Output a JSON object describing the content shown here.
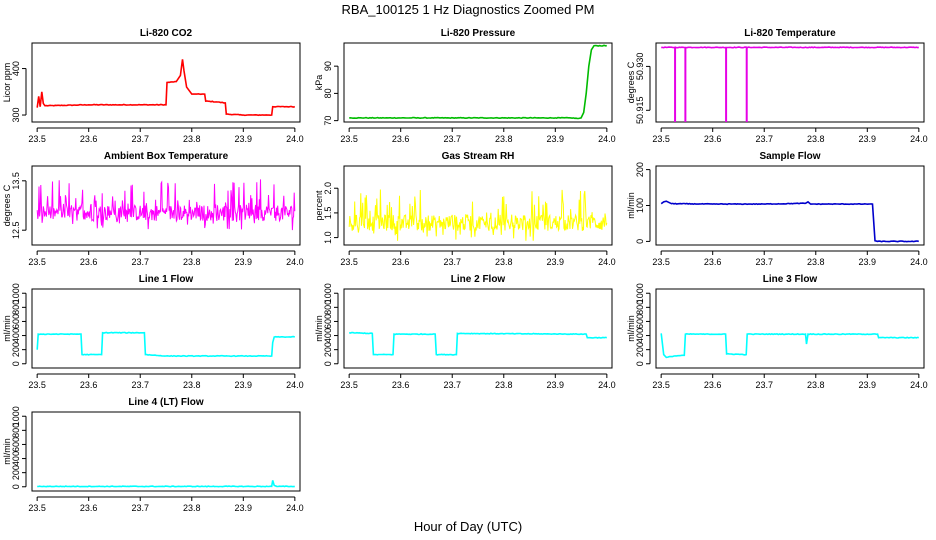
{
  "figure": {
    "title": "RBA_100125  1 Hz Diagnostics Zoomed PM",
    "xlabel": "Hour of Day (UTC)"
  },
  "chart_data": [
    {
      "type": "line",
      "title": "Li-820 CO2",
      "ylabel": "Licor ppm",
      "color": "#ff0000",
      "xlim": [
        23.49,
        24.01
      ],
      "ylim": [
        285,
        455
      ],
      "yticks": [
        300,
        400
      ],
      "ytick_labels": [
        "300",
        "400"
      ],
      "xticks": [
        23.5,
        23.6,
        23.7,
        23.8,
        23.9,
        24.0
      ],
      "xtick_labels": [
        "23.5",
        "23.6",
        "23.7",
        "23.8",
        "23.9",
        "24.0"
      ],
      "series": [
        {
          "name": "CO2",
          "points": [
            [
              23.5,
              316
            ],
            [
              23.503,
              340
            ],
            [
              23.506,
              318
            ],
            [
              23.509,
              350
            ],
            [
              23.512,
              325
            ],
            [
              23.515,
              320
            ],
            [
              23.6,
              322
            ],
            [
              23.66,
              322
            ],
            [
              23.7,
              322
            ],
            [
              23.75,
              322
            ],
            [
              23.752,
              370
            ],
            [
              23.77,
              372
            ],
            [
              23.778,
              385
            ],
            [
              23.782,
              420
            ],
            [
              23.785,
              395
            ],
            [
              23.79,
              360
            ],
            [
              23.8,
              345
            ],
            [
              23.805,
              345
            ],
            [
              23.81,
              345
            ],
            [
              23.825,
              345
            ],
            [
              23.827,
              330
            ],
            [
              23.85,
              328
            ],
            [
              23.865,
              326
            ],
            [
              23.867,
              302
            ],
            [
              23.9,
              300
            ],
            [
              23.955,
              300
            ],
            [
              23.957,
              318
            ],
            [
              23.99,
              318
            ],
            [
              24.0,
              318
            ]
          ]
        }
      ]
    },
    {
      "type": "line",
      "title": "Li-820 Pressure",
      "ylabel": "kPa",
      "color": "#00bb00",
      "xlim": [
        23.49,
        24.01
      ],
      "ylim": [
        69.5,
        98.5
      ],
      "yticks": [
        70,
        80,
        90
      ],
      "ytick_labels": [
        "70",
        "80",
        "90"
      ],
      "xticks": [
        23.5,
        23.6,
        23.7,
        23.8,
        23.9,
        24.0
      ],
      "xtick_labels": [
        "23.5",
        "23.6",
        "23.7",
        "23.8",
        "23.9",
        "24.0"
      ],
      "series": [
        {
          "name": "Pressure",
          "points": [
            [
              23.5,
              71
            ],
            [
              23.9,
              71
            ],
            [
              23.93,
              71
            ],
            [
              23.945,
              70.8
            ],
            [
              23.95,
              71
            ],
            [
              23.955,
              73
            ],
            [
              23.96,
              80
            ],
            [
              23.965,
              90
            ],
            [
              23.97,
              96
            ],
            [
              23.975,
              97.5
            ],
            [
              24.0,
              97.5
            ]
          ]
        }
      ]
    },
    {
      "type": "line",
      "title": "Li-820 Temperature",
      "ylabel": "degrees C",
      "color": "#e600e6",
      "xlim": [
        23.49,
        24.01
      ],
      "ylim": [
        50.911,
        50.938
      ],
      "yticks": [
        50.915,
        50.93
      ],
      "ytick_labels": [
        "50.915",
        "50.930"
      ],
      "xticks": [
        23.5,
        23.6,
        23.7,
        23.8,
        23.9,
        24.0
      ],
      "xtick_labels": [
        "23.5",
        "23.6",
        "23.7",
        "23.8",
        "23.9",
        "24.0"
      ],
      "series": [
        {
          "name": "Temperature",
          "points": [
            [
              23.5,
              50.9365
            ],
            [
              24.0,
              50.9365
            ]
          ]
        }
      ],
      "dropouts": [
        23.527,
        23.547,
        23.626,
        23.666
      ]
    },
    {
      "type": "line",
      "title": "Ambient Box Temperature",
      "ylabel": "degrees C",
      "color": "#ff00ff",
      "xlim": [
        23.49,
        24.01
      ],
      "ylim": [
        12.2,
        13.8
      ],
      "yticks": [
        12.5,
        13.5
      ],
      "ytick_labels": [
        "12.5",
        "13.5"
      ],
      "xticks": [
        23.5,
        23.6,
        23.7,
        23.8,
        23.9,
        24.0
      ],
      "xtick_labels": [
        "23.5",
        "23.6",
        "23.7",
        "23.8",
        "23.9",
        "24.0"
      ],
      "series": [
        {
          "name": "Box Temp",
          "base": 12.85,
          "amp": 0.55,
          "noise": true
        }
      ]
    },
    {
      "type": "line",
      "title": "Gas Stream RH",
      "ylabel": "percent",
      "color": "#ffff00",
      "xlim": [
        23.49,
        24.01
      ],
      "ylim": [
        0.85,
        2.45
      ],
      "yticks": [
        1.0,
        1.5,
        2.0
      ],
      "ytick_labels": [
        "1.0",
        "1.5",
        "2.0"
      ],
      "xticks": [
        23.5,
        23.6,
        23.7,
        23.8,
        23.9,
        24.0
      ],
      "xtick_labels": [
        "23.5",
        "23.6",
        "23.7",
        "23.8",
        "23.9",
        "24.0"
      ],
      "series": [
        {
          "name": "RH",
          "base": 1.3,
          "amp": 0.55,
          "noise": true
        }
      ]
    },
    {
      "type": "line",
      "title": "Sample Flow",
      "ylabel": "ml/min",
      "color": "#0000cc",
      "xlim": [
        23.49,
        24.01
      ],
      "ylim": [
        -10,
        210
      ],
      "yticks": [
        0,
        100,
        200
      ],
      "ytick_labels": [
        "0",
        "100",
        "200"
      ],
      "xticks": [
        23.5,
        23.6,
        23.7,
        23.8,
        23.9,
        24.0
      ],
      "xtick_labels": [
        "23.5",
        "23.6",
        "23.7",
        "23.8",
        "23.9",
        "24.0"
      ],
      "series": [
        {
          "name": "Sample Flow",
          "points": [
            [
              23.5,
              105
            ],
            [
              23.505,
              110
            ],
            [
              23.51,
              112
            ],
            [
              23.52,
              105
            ],
            [
              23.6,
              104
            ],
            [
              23.7,
              104
            ],
            [
              23.78,
              106
            ],
            [
              23.785,
              110
            ],
            [
              23.79,
              104
            ],
            [
              23.91,
              104
            ],
            [
              23.915,
              2
            ],
            [
              23.92,
              0
            ],
            [
              24.0,
              0
            ]
          ]
        }
      ]
    },
    {
      "type": "line",
      "title": "Line 1 Flow",
      "ylabel": "ml/min",
      "color": "#00ffff",
      "xlim": [
        23.49,
        24.01
      ],
      "ylim": [
        -60,
        1060
      ],
      "yticks": [
        0,
        200,
        400,
        600,
        800,
        1000
      ],
      "ytick_labels": [
        "0",
        "200",
        "400",
        "600",
        "800",
        "1000"
      ],
      "xticks": [
        23.5,
        23.6,
        23.7,
        23.8,
        23.9,
        24.0
      ],
      "xtick_labels": [
        "23.5",
        "23.6",
        "23.7",
        "23.8",
        "23.9",
        "24.0"
      ],
      "series": [
        {
          "name": "Line 1",
          "points": [
            [
              23.5,
              200
            ],
            [
              23.502,
              420
            ],
            [
              23.585,
              420
            ],
            [
              23.587,
              130
            ],
            [
              23.625,
              130
            ],
            [
              23.627,
              440
            ],
            [
              23.708,
              440
            ],
            [
              23.71,
              130
            ],
            [
              23.75,
              110
            ],
            [
              23.9,
              110
            ],
            [
              23.955,
              110
            ],
            [
              23.957,
              300
            ],
            [
              23.96,
              380
            ],
            [
              24.0,
              380
            ]
          ]
        }
      ]
    },
    {
      "type": "line",
      "title": "Line 2 Flow",
      "ylabel": "ml/min",
      "color": "#00ffff",
      "xlim": [
        23.49,
        24.01
      ],
      "ylim": [
        -60,
        1060
      ],
      "yticks": [
        0,
        200,
        400,
        600,
        800,
        1000
      ],
      "ytick_labels": [
        "0",
        "200",
        "400",
        "600",
        "800",
        "1000"
      ],
      "xticks": [
        23.5,
        23.6,
        23.7,
        23.8,
        23.9,
        24.0
      ],
      "xtick_labels": [
        "23.5",
        "23.6",
        "23.7",
        "23.8",
        "23.9",
        "24.0"
      ],
      "series": [
        {
          "name": "Line 2",
          "points": [
            [
              23.5,
              440
            ],
            [
              23.545,
              430
            ],
            [
              23.547,
              130
            ],
            [
              23.585,
              130
            ],
            [
              23.587,
              420
            ],
            [
              23.667,
              420
            ],
            [
              23.669,
              130
            ],
            [
              23.708,
              130
            ],
            [
              23.71,
              430
            ],
            [
              23.96,
              420
            ],
            [
              23.962,
              370
            ],
            [
              24.0,
              370
            ]
          ]
        }
      ]
    },
    {
      "type": "line",
      "title": "Line 3 Flow",
      "ylabel": "ml/min",
      "color": "#00ffff",
      "xlim": [
        23.49,
        24.01
      ],
      "ylim": [
        -60,
        1060
      ],
      "yticks": [
        0,
        200,
        400,
        600,
        800,
        1000
      ],
      "ytick_labels": [
        "0",
        "200",
        "400",
        "600",
        "800",
        "1000"
      ],
      "xticks": [
        23.5,
        23.6,
        23.7,
        23.8,
        23.9,
        24.0
      ],
      "xtick_labels": [
        "23.5",
        "23.6",
        "23.7",
        "23.8",
        "23.9",
        "24.0"
      ],
      "series": [
        {
          "name": "Line 3",
          "points": [
            [
              23.5,
              430
            ],
            [
              23.505,
              130
            ],
            [
              23.51,
              90
            ],
            [
              23.525,
              110
            ],
            [
              23.545,
              120
            ],
            [
              23.547,
              420
            ],
            [
              23.625,
              420
            ],
            [
              23.627,
              140
            ],
            [
              23.665,
              130
            ],
            [
              23.667,
              420
            ],
            [
              23.78,
              420
            ],
            [
              23.782,
              280
            ],
            [
              23.785,
              420
            ],
            [
              23.92,
              420
            ],
            [
              23.922,
              370
            ],
            [
              24.0,
              370
            ]
          ]
        }
      ]
    },
    {
      "type": "line",
      "title": "Line 4 (LT) Flow",
      "ylabel": "ml/min",
      "color": "#00ffff",
      "xlim": [
        23.49,
        24.01
      ],
      "ylim": [
        -60,
        1060
      ],
      "yticks": [
        0,
        200,
        400,
        600,
        800,
        1000
      ],
      "ytick_labels": [
        "0",
        "200",
        "400",
        "600",
        "800",
        "1000"
      ],
      "xticks": [
        23.5,
        23.6,
        23.7,
        23.8,
        23.9,
        24.0
      ],
      "xtick_labels": [
        "23.5",
        "23.6",
        "23.7",
        "23.8",
        "23.9",
        "24.0"
      ],
      "series": [
        {
          "name": "Line 4",
          "points": [
            [
              23.5,
              5
            ],
            [
              23.955,
              5
            ],
            [
              23.957,
              90
            ],
            [
              23.96,
              20
            ],
            [
              23.965,
              5
            ],
            [
              24.0,
              5
            ]
          ]
        }
      ]
    }
  ]
}
